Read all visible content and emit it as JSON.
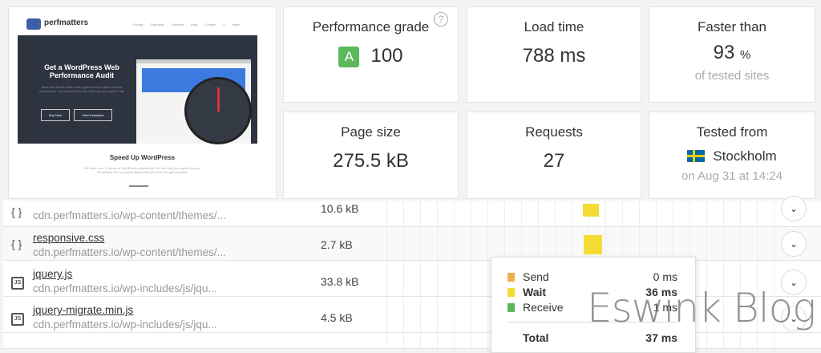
{
  "preview": {
    "logo": "perfmatters",
    "nav": [
      "Pricing",
      "Examples",
      "Partners",
      "Blog",
      "Contact",
      "0 items"
    ],
    "hero_title": "Get a WordPress Web Performance Audit",
    "hero_text": "Slow WordPress sites have higher bounce rates and less conversions. Let us audit your site and help you speed it up!",
    "buy": "Buy Now",
    "view": "View Examples",
    "section_title": "Speed Up WordPress",
    "section_text": "We have over 10 years of WordPress experience. We can help you speed up your WordPress site to speeds faster than you ever thought possible!"
  },
  "metrics": {
    "grade": {
      "label": "Performance grade",
      "letter": "A",
      "value": "100",
      "help": "?",
      "color": "#5cb85c"
    },
    "load": {
      "label": "Load time",
      "value": "788 ms"
    },
    "faster": {
      "label": "Faster than",
      "value": "93",
      "unit": "%",
      "sub": "of tested sites"
    },
    "size": {
      "label": "Page size",
      "value": "275.5 kB"
    },
    "requests": {
      "label": "Requests",
      "value": "27"
    },
    "tested": {
      "label": "Tested from",
      "city": "Stockholm",
      "sub": "on Aug 31 at 14:24"
    }
  },
  "rows": [
    {
      "type": "css",
      "icon": "{ }",
      "name": "",
      "url": "cdn.perfmatters.io/wp-content/themes/...",
      "size": "10.6 kB"
    },
    {
      "type": "css",
      "icon": "{ }",
      "name": "responsive.css",
      "url": "cdn.perfmatters.io/wp-content/themes/...",
      "size": "2.7 kB"
    },
    {
      "type": "js",
      "icon": "JS",
      "name": "jquery.js",
      "url": "cdn.perfmatters.io/wp-includes/js/jqu...",
      "size": "33.8 kB"
    },
    {
      "type": "js",
      "icon": "JS",
      "name": "jquery-migrate.min.js",
      "url": "cdn.perfmatters.io/wp-includes/js/jqu...",
      "size": "4.5 kB"
    }
  ],
  "tooltip": {
    "send": {
      "label": "Send",
      "value": "0 ms",
      "color": "#f0ad4e"
    },
    "wait": {
      "label": "Wait",
      "value": "36 ms",
      "color": "#f5dc35"
    },
    "receive": {
      "label": "Receive",
      "value": "1 ms",
      "color": "#5cb85c"
    },
    "total": {
      "label": "Total",
      "value": "37 ms"
    }
  },
  "watermark": "Eswink Blog"
}
